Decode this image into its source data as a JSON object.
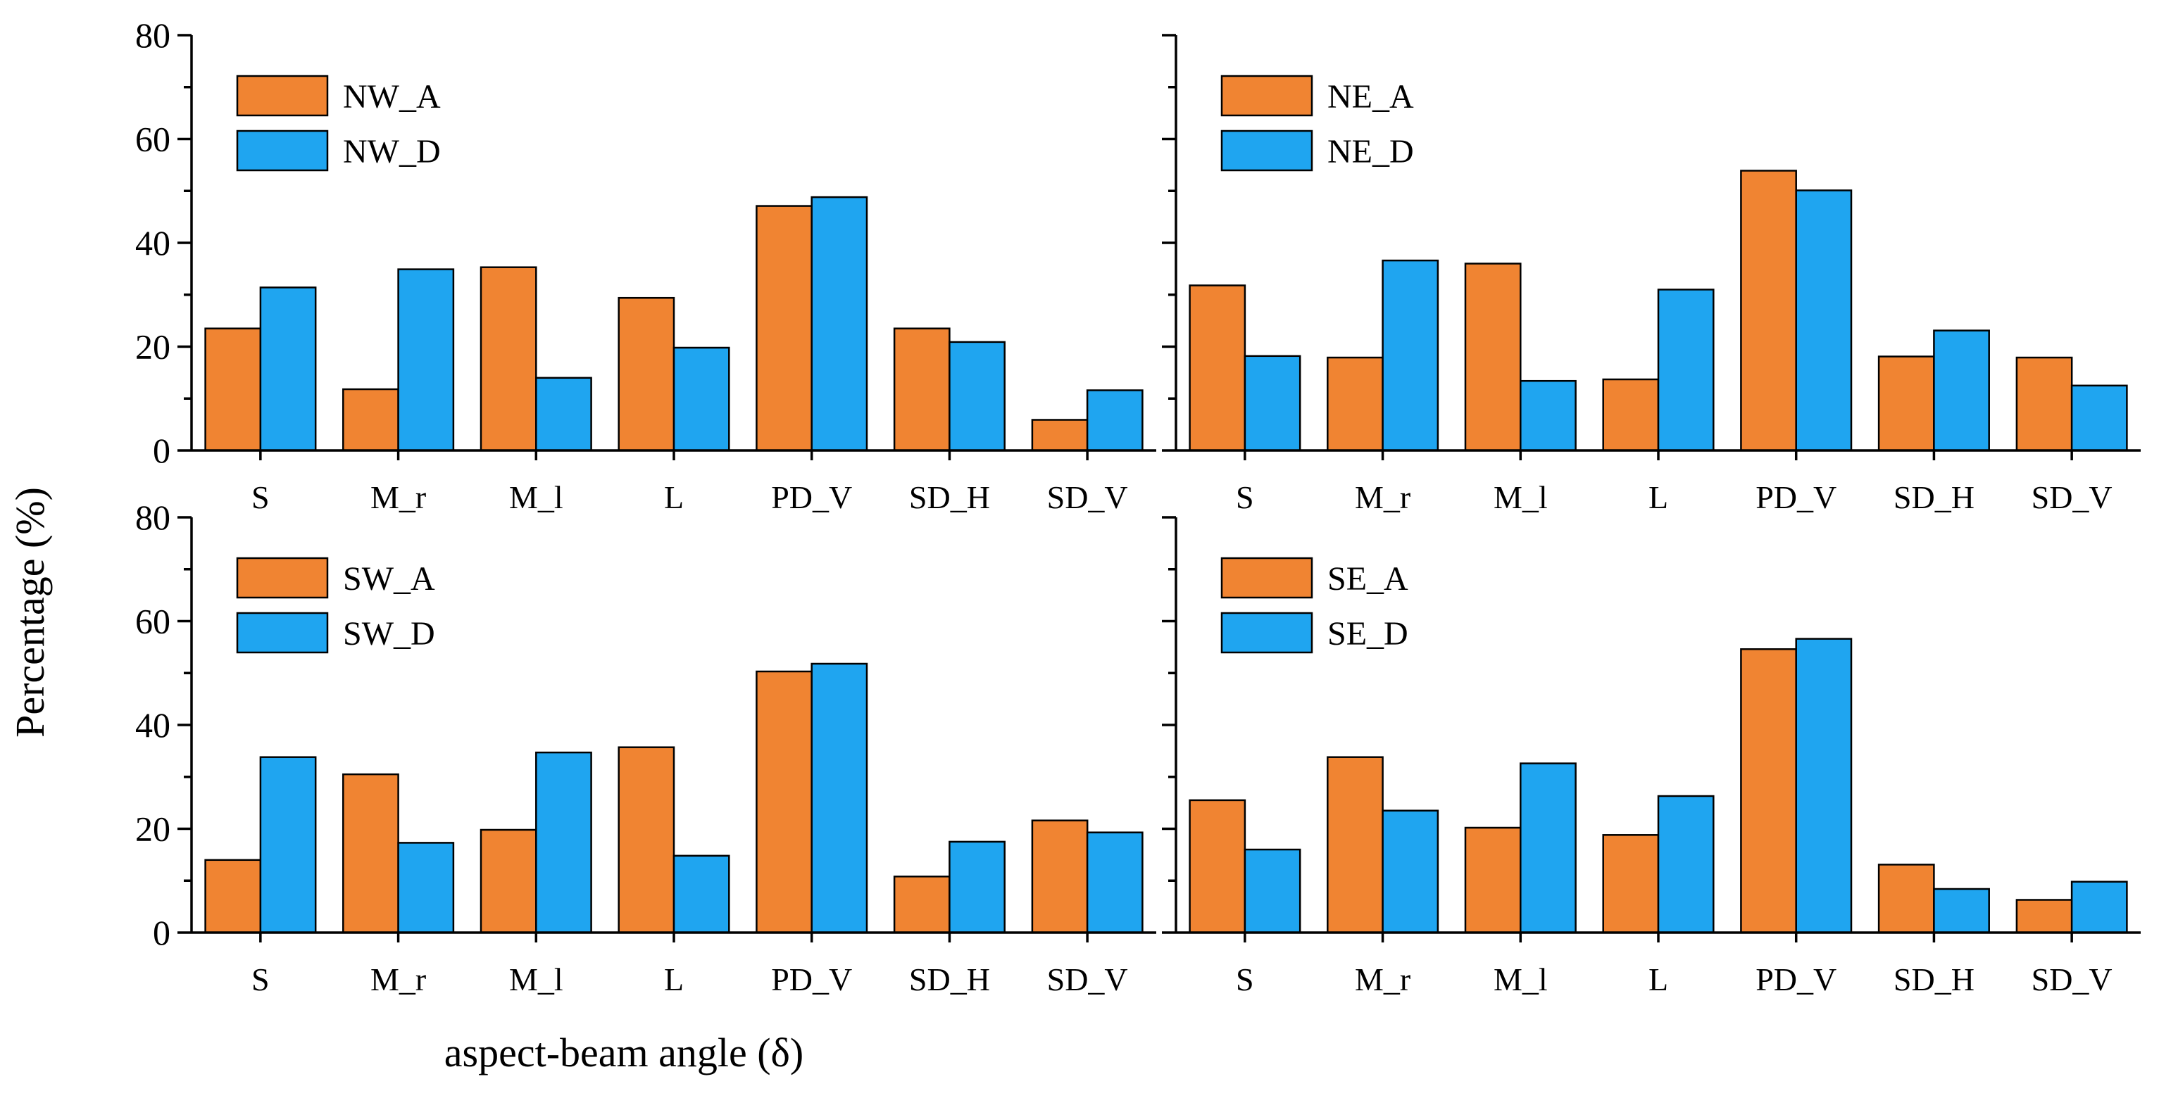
{
  "figure": {
    "ylabel": "Percentage  (%)",
    "xlabel": "aspect-beam angle (δ)",
    "colors": {
      "A": "#F08432",
      "D": "#1FA5F0"
    }
  },
  "chart_data": [
    {
      "type": "bar",
      "panel": "top-left",
      "categories": [
        "S",
        "M_r",
        "M_l",
        "L",
        "PD_V",
        "SD_H",
        "SD_V"
      ],
      "ylim": [
        0,
        80
      ],
      "yticks": [
        0,
        20,
        40,
        60,
        80
      ],
      "legend_position": "top-left",
      "series": [
        {
          "name": "NW_A",
          "values": [
            23.5,
            11.8,
            35.3,
            29.4,
            47.1,
            23.5,
            5.9
          ]
        },
        {
          "name": "NW_D",
          "values": [
            31.4,
            34.9,
            14.0,
            19.8,
            48.8,
            20.9,
            11.6
          ]
        }
      ]
    },
    {
      "type": "bar",
      "panel": "top-right",
      "categories": [
        "S",
        "M_r",
        "M_l",
        "L",
        "PD_V",
        "SD_H",
        "SD_V"
      ],
      "ylim": [
        0,
        80
      ],
      "yticks": [
        0,
        20,
        40,
        60,
        80
      ],
      "legend_position": "top-left",
      "series": [
        {
          "name": "NE_A",
          "values": [
            31.8,
            17.9,
            36.0,
            13.7,
            53.9,
            18.1,
            17.9
          ]
        },
        {
          "name": "NE_D",
          "values": [
            18.2,
            36.6,
            13.4,
            31.0,
            50.1,
            23.1,
            12.5
          ]
        }
      ]
    },
    {
      "type": "bar",
      "panel": "bottom-left",
      "categories": [
        "S",
        "M_r",
        "M_l",
        "L",
        "PD_V",
        "SD_H",
        "SD_V"
      ],
      "ylim": [
        0,
        80
      ],
      "yticks": [
        0,
        20,
        40,
        60,
        80
      ],
      "legend_position": "top-left",
      "series": [
        {
          "name": "SW_A",
          "values": [
            14.0,
            30.5,
            19.8,
            35.7,
            50.3,
            10.8,
            21.6
          ]
        },
        {
          "name": "SW_D",
          "values": [
            33.8,
            17.3,
            34.7,
            14.8,
            51.8,
            17.5,
            19.3
          ]
        }
      ]
    },
    {
      "type": "bar",
      "panel": "bottom-right",
      "categories": [
        "S",
        "M_r",
        "M_l",
        "L",
        "PD_V",
        "SD_H",
        "SD_V"
      ],
      "ylim": [
        0,
        80
      ],
      "yticks": [
        0,
        20,
        40,
        60,
        80
      ],
      "legend_position": "top-left",
      "series": [
        {
          "name": "SE_A",
          "values": [
            25.5,
            33.8,
            20.2,
            18.8,
            54.6,
            13.1,
            6.3
          ]
        },
        {
          "name": "SE_D",
          "values": [
            16.0,
            23.5,
            32.6,
            26.3,
            56.6,
            8.4,
            9.8
          ]
        }
      ]
    }
  ]
}
